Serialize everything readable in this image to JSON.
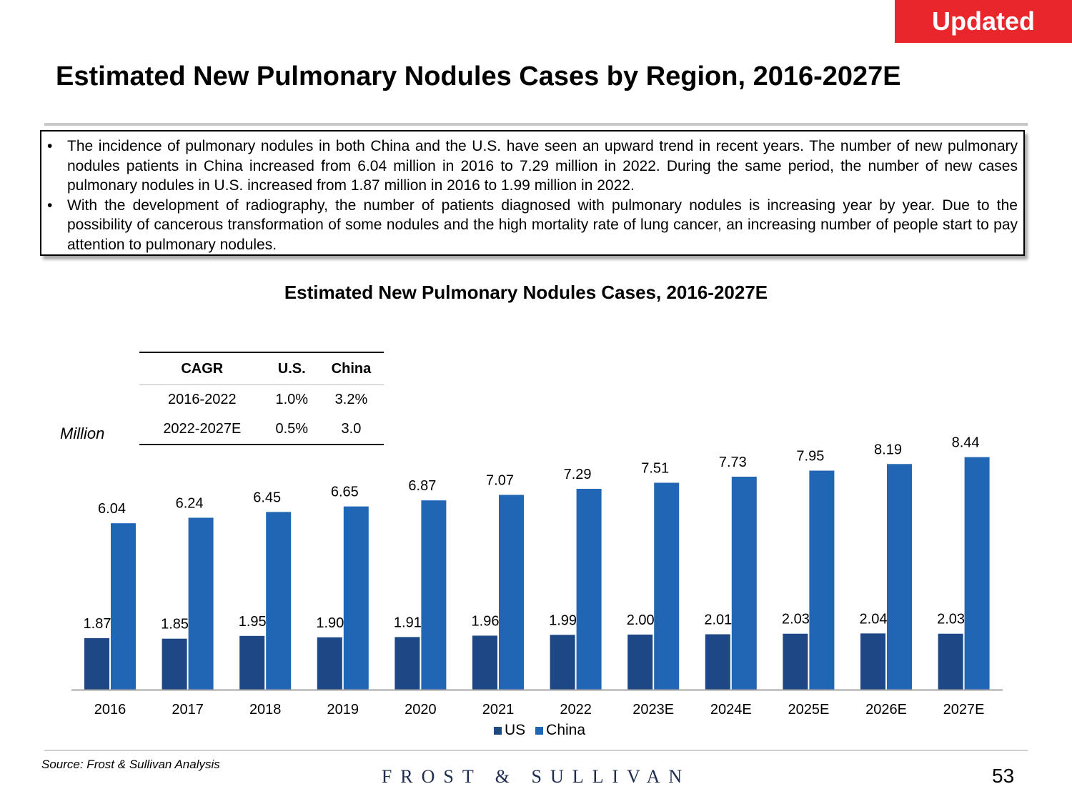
{
  "badge": "Updated",
  "title": "Estimated New Pulmonary Nodules Cases by Region, 2016-2027E",
  "bullets": [
    {
      "marker": "•",
      "text": "The incidence of pulmonary nodules in both China and the U.S. have seen an upward trend in recent years. The number of new pulmonary nodules patients in China increased from 6.04 million in 2016 to 7.29 million in 2022. During the same period, the number of new cases pulmonary nodules in U.S. increased from 1.87 million in 2016 to 1.99 million in 2022."
    },
    {
      "marker": "•",
      "text": "With the development of radiography, the number of patients diagnosed with pulmonary nodules is increasing year by year. Due to the possibility of cancerous transformation of some nodules and the high mortality rate of lung cancer, an increasing number of people start to pay attention to pulmonary nodules."
    }
  ],
  "cagr_table": {
    "headers": [
      "CAGR",
      "U.S.",
      "China"
    ],
    "rows": [
      [
        "2016-2022",
        "1.0%",
        "3.2%"
      ],
      [
        "2022-2027E",
        "0.5%",
        "3.0"
      ]
    ]
  },
  "unit_label": "Million",
  "colors": {
    "us": "#1d4785",
    "china": "#2166b4",
    "badge": "#e8262b"
  },
  "chart_data": {
    "type": "bar",
    "title": "Estimated New Pulmonary Nodules Cases, 2016-2027E",
    "xlabel": "",
    "ylabel": "Million",
    "categories": [
      "2016",
      "2017",
      "2018",
      "2019",
      "2020",
      "2021",
      "2022",
      "2023E",
      "2024E",
      "2025E",
      "2026E",
      "2027E"
    ],
    "series": [
      {
        "name": "US",
        "values": [
          1.87,
          1.85,
          1.95,
          1.9,
          1.91,
          1.96,
          1.99,
          2.0,
          2.01,
          2.03,
          2.04,
          2.03
        ],
        "labels": [
          "1.87",
          "1.85",
          "1.95",
          "1.90",
          "1.91",
          "1.96",
          "1.99",
          "2.00",
          "2.01",
          "2.03",
          "2.04",
          "2.03"
        ]
      },
      {
        "name": "China",
        "values": [
          6.04,
          6.24,
          6.45,
          6.65,
          6.87,
          7.07,
          7.29,
          7.51,
          7.73,
          7.95,
          8.19,
          8.44
        ],
        "labels": [
          "6.04",
          "6.24",
          "6.45",
          "6.65",
          "6.87",
          "7.07",
          "7.29",
          "7.51",
          "7.73",
          "7.95",
          "8.19",
          "8.44"
        ]
      }
    ],
    "ylim": [
      0,
      9
    ],
    "grid": false,
    "legend": "bottom-center"
  },
  "source": "Source: Frost & Sullivan Analysis",
  "logo": "FROST & SULLIVAN",
  "page_number": "53"
}
